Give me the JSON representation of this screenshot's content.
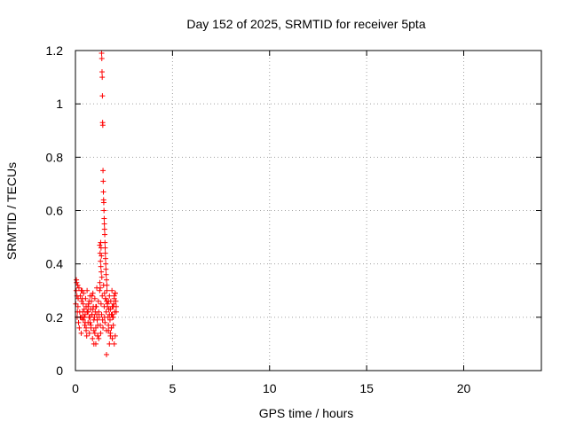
{
  "chart_data": {
    "type": "scatter",
    "title": "Day 152 of 2025, SRMTID for receiver 5pta",
    "xlabel": "GPS time / hours",
    "ylabel": "SRMTID / TECUs",
    "xlim": [
      0,
      24
    ],
    "ylim": [
      0,
      1.2
    ],
    "xticks": [
      0,
      5,
      10,
      15,
      20
    ],
    "xtick_labels": [
      "0",
      "5",
      "10",
      "15",
      "20"
    ],
    "yticks": [
      0,
      0.2,
      0.4,
      0.6,
      0.8,
      1,
      1.2
    ],
    "ytick_labels": [
      "0",
      "0.2",
      "0.4",
      "0.6",
      "0.8",
      "1",
      "1.2"
    ],
    "grid": true,
    "marker": "+",
    "series": [
      {
        "name": "SRMTID",
        "color": "#ff0000",
        "x": [
          0.02,
          0.04,
          0.06,
          0.08,
          0.1,
          0.12,
          0.14,
          0.05,
          0.09,
          0.13,
          0.16,
          0.18,
          0.2,
          0.22,
          0.25,
          0.28,
          0.3,
          0.32,
          0.35,
          0.38,
          0.4,
          0.42,
          0.45,
          0.48,
          0.5,
          0.52,
          0.55,
          0.58,
          0.6,
          0.62,
          0.65,
          0.68,
          0.7,
          0.72,
          0.75,
          0.78,
          0.8,
          0.82,
          0.85,
          0.88,
          0.9,
          0.92,
          0.95,
          0.98,
          1.0,
          1.02,
          1.05,
          1.08,
          1.1,
          1.12,
          1.15,
          1.18,
          1.2,
          1.22,
          1.25,
          1.28,
          1.3,
          1.32,
          1.35,
          1.38,
          1.4,
          1.42,
          1.45,
          1.48,
          1.5,
          1.52,
          1.55,
          1.58,
          1.6,
          1.62,
          1.65,
          1.68,
          1.7,
          1.72,
          1.75,
          1.78,
          1.8,
          1.82,
          1.85,
          1.88,
          1.9,
          1.92,
          1.95,
          1.98,
          2.0,
          2.02,
          2.05,
          2.08,
          2.1,
          1.35,
          1.36,
          1.37,
          1.38,
          1.39,
          1.4,
          1.41,
          1.42,
          1.43,
          1.44,
          1.45,
          1.46,
          1.47,
          1.48,
          1.49,
          1.5,
          1.51,
          1.52,
          1.53,
          1.54,
          1.55,
          1.56,
          1.57,
          1.58,
          1.6,
          1.62,
          1.3,
          1.32,
          1.34,
          1.25,
          1.27,
          1.29,
          1.31,
          1.33,
          1.36,
          1.26,
          1.28,
          1.5,
          1.55,
          1.6,
          1.65,
          0.3,
          0.35,
          0.4,
          0.45,
          0.5,
          0.55,
          0.6,
          0.65,
          0.7,
          0.75,
          0.8,
          0.85,
          0.9,
          0.95,
          1.0,
          1.05,
          1.1,
          1.15,
          1.2,
          1.7,
          1.75,
          1.8,
          1.85,
          1.9,
          1.95,
          2.0,
          2.05,
          2.1,
          0.25,
          0.35,
          0.45,
          0.55,
          0.65,
          0.75,
          0.85,
          0.95,
          1.05,
          1.15,
          1.6,
          1.7,
          1.8,
          1.9,
          2.0,
          1.75,
          1.85,
          1.95,
          2.05
        ],
        "y": [
          0.25,
          0.3,
          0.33,
          0.28,
          0.22,
          0.32,
          0.27,
          0.34,
          0.2,
          0.24,
          0.18,
          0.31,
          0.16,
          0.22,
          0.28,
          0.2,
          0.14,
          0.26,
          0.3,
          0.22,
          0.19,
          0.29,
          0.23,
          0.17,
          0.21,
          0.27,
          0.24,
          0.13,
          0.3,
          0.22,
          0.18,
          0.25,
          0.2,
          0.14,
          0.28,
          0.23,
          0.17,
          0.26,
          0.21,
          0.12,
          0.29,
          0.24,
          0.1,
          0.2,
          0.27,
          0.22,
          0.16,
          0.24,
          0.31,
          0.19,
          0.13,
          0.26,
          0.22,
          0.2,
          0.3,
          0.17,
          0.14,
          0.25,
          0.21,
          0.28,
          0.19,
          0.16,
          0.32,
          0.24,
          0.2,
          0.18,
          0.27,
          0.22,
          0.15,
          0.3,
          0.25,
          0.2,
          0.17,
          0.23,
          0.28,
          0.19,
          0.14,
          0.26,
          0.21,
          0.3,
          0.24,
          0.2,
          0.17,
          0.25,
          0.28,
          0.22,
          0.29,
          0.26,
          0.24,
          1.19,
          1.17,
          1.12,
          1.1,
          1.03,
          0.93,
          0.92,
          0.75,
          0.71,
          0.67,
          0.64,
          0.63,
          0.6,
          0.57,
          0.55,
          0.53,
          0.51,
          0.48,
          0.46,
          0.44,
          0.42,
          0.4,
          0.38,
          0.36,
          0.34,
          0.32,
          0.48,
          0.46,
          0.43,
          0.47,
          0.44,
          0.41,
          0.39,
          0.37,
          0.35,
          0.33,
          0.31,
          0.29,
          0.27,
          0.26,
          0.24,
          0.3,
          0.27,
          0.25,
          0.2,
          0.18,
          0.16,
          0.22,
          0.24,
          0.26,
          0.2,
          0.16,
          0.28,
          0.23,
          0.19,
          0.14,
          0.24,
          0.21,
          0.17,
          0.12,
          0.26,
          0.21,
          0.23,
          0.16,
          0.21,
          0.24,
          0.27,
          0.29,
          0.22,
          0.2,
          0.2,
          0.2,
          0.15,
          0.22,
          0.18,
          0.21,
          0.15,
          0.1,
          0.13,
          0.06,
          0.15,
          0.13,
          0.12,
          0.1,
          0.1,
          0.16,
          0.2,
          0.13
        ]
      }
    ]
  }
}
